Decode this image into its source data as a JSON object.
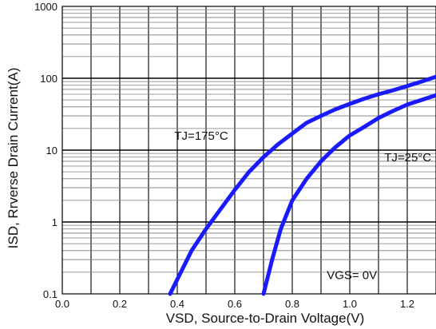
{
  "chart_data": {
    "type": "line",
    "title": "",
    "xlabel": "VSD, Source-to-Drain Voltage(V)",
    "ylabel": "ISD, Rrverse Drain Current(A)",
    "xlim": [
      0.0,
      1.3
    ],
    "ylim": [
      0.1,
      1000
    ],
    "y_scale": "log",
    "grid": true,
    "x_ticks": [
      "0.0",
      "0.2",
      "0.4",
      "0.6",
      "0.8",
      "1.0",
      "1.2"
    ],
    "y_ticks": [
      "0.1",
      "1",
      "10",
      "100",
      "1000"
    ],
    "line_color": "#1a1aff",
    "series": [
      {
        "name": "TJ=175°C",
        "x": [
          0.375,
          0.45,
          0.5,
          0.55,
          0.6,
          0.65,
          0.7,
          0.75,
          0.8,
          0.85,
          0.9,
          0.95,
          1.0,
          1.05,
          1.1,
          1.15,
          1.2,
          1.25,
          1.3
        ],
        "y": [
          0.1,
          0.4,
          0.8,
          1.5,
          2.8,
          5,
          8,
          12,
          17,
          24,
          30,
          37,
          44,
          52,
          60,
          68,
          78,
          90,
          105
        ]
      },
      {
        "name": "TJ=25°C",
        "x": [
          0.7,
          0.73,
          0.76,
          0.8,
          0.85,
          0.9,
          0.95,
          1.0,
          1.05,
          1.1,
          1.15,
          1.2,
          1.25,
          1.3
        ],
        "y": [
          0.1,
          0.3,
          0.8,
          2,
          4,
          7,
          11,
          16,
          21,
          28,
          35,
          43,
          50,
          58
        ]
      }
    ],
    "annotations": [
      {
        "text": "TJ=175°C",
        "x": 0.39,
        "y": 14
      },
      {
        "text": "TJ=25°C",
        "x": 1.12,
        "y": 7
      },
      {
        "text": "VGS= 0V",
        "x": 0.92,
        "y": 0.16
      }
    ]
  }
}
